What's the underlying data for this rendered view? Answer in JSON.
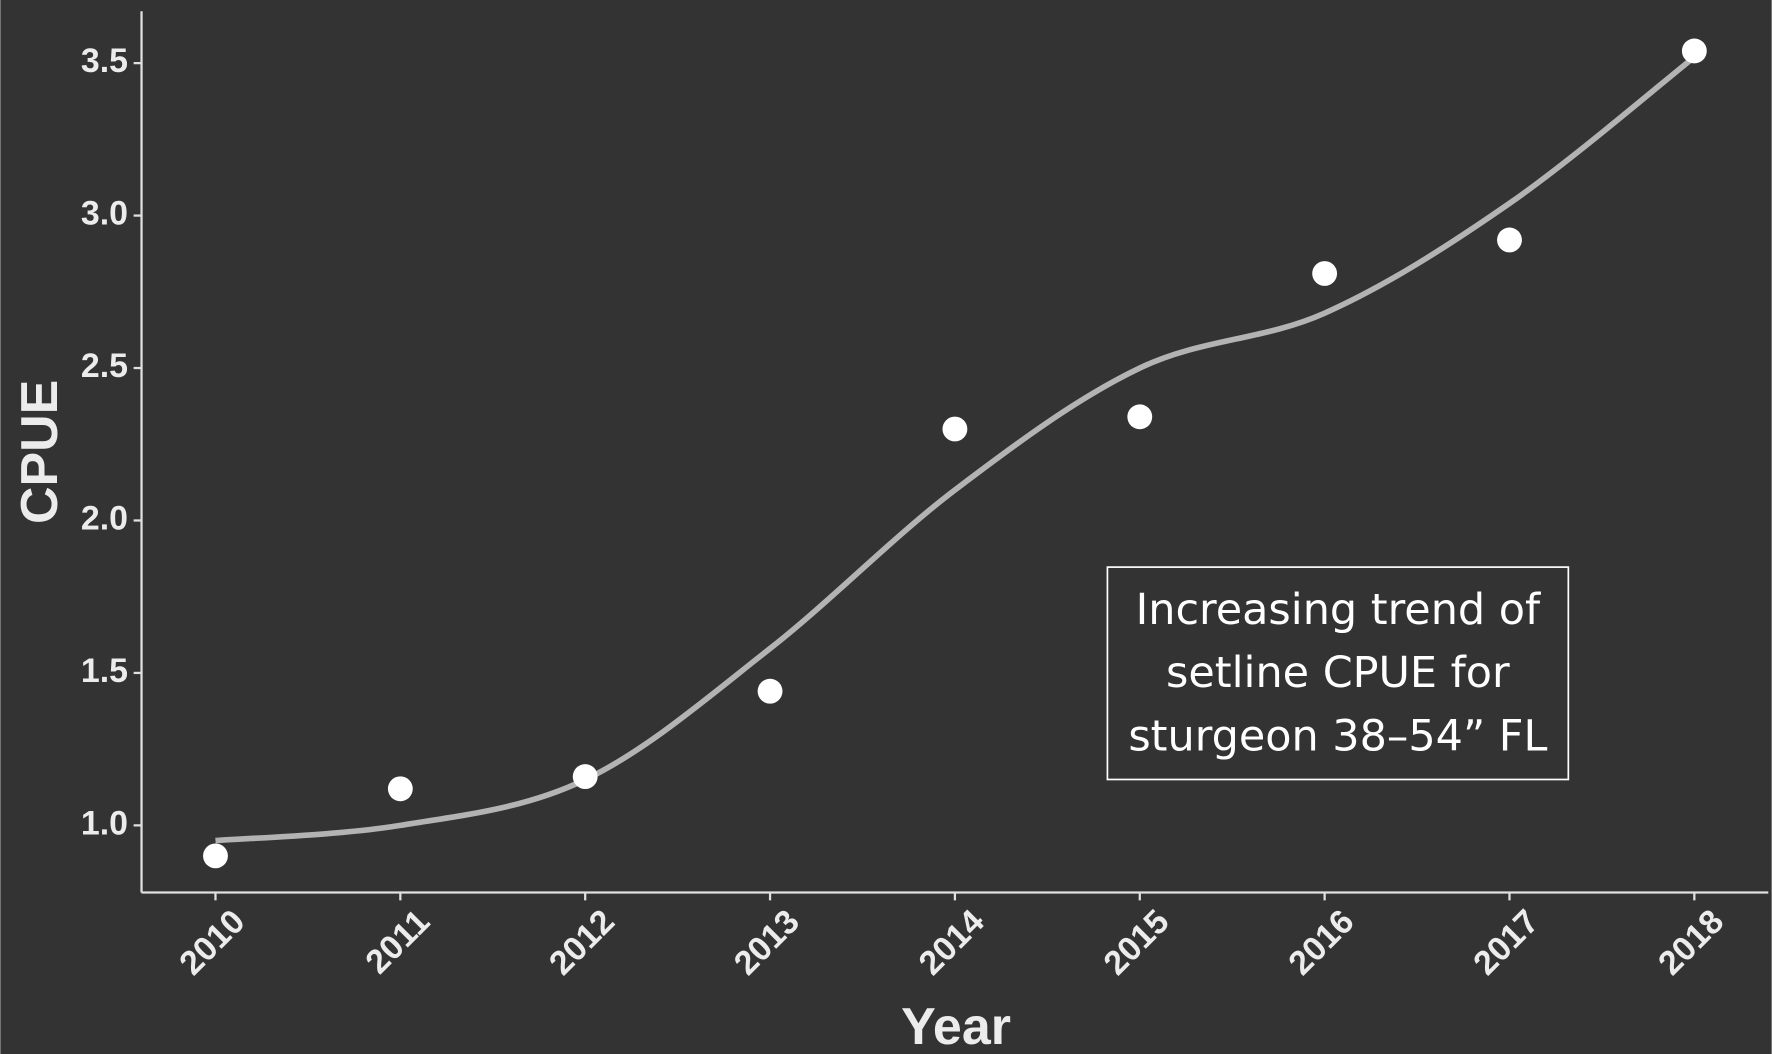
{
  "chart_data": {
    "type": "scatter",
    "x_label": "Year",
    "y_label": "CPUE",
    "x": [
      2010,
      2011,
      2012,
      2013,
      2014,
      2015,
      2016,
      2017,
      2018
    ],
    "values": [
      0.9,
      1.12,
      1.16,
      1.44,
      2.3,
      2.34,
      2.81,
      2.92,
      3.54
    ],
    "color": "#ffffff",
    "trend": {
      "values": [
        0.95,
        1.0,
        1.15,
        1.58,
        2.1,
        2.5,
        2.68,
        3.04,
        3.52
      ],
      "color": "#b3b3b3"
    },
    "xlim": [
      2009.6,
      2018.4
    ],
    "xticks": [
      2010,
      2011,
      2012,
      2013,
      2014,
      2015,
      2016,
      2017,
      2018
    ],
    "ylim": [
      0.78,
      3.67
    ],
    "yticks": [
      {
        "value": 1,
        "label": "1.0"
      },
      1.5,
      {
        "value": 2,
        "label": "2.0"
      },
      2.5,
      {
        "value": 3,
        "label": "3.0"
      },
      3.5
    ],
    "annotation": [
      "Increasing trend of",
      "setline CPUE for",
      "sturgeon 38–54” FL"
    ],
    "background": "#333333"
  }
}
